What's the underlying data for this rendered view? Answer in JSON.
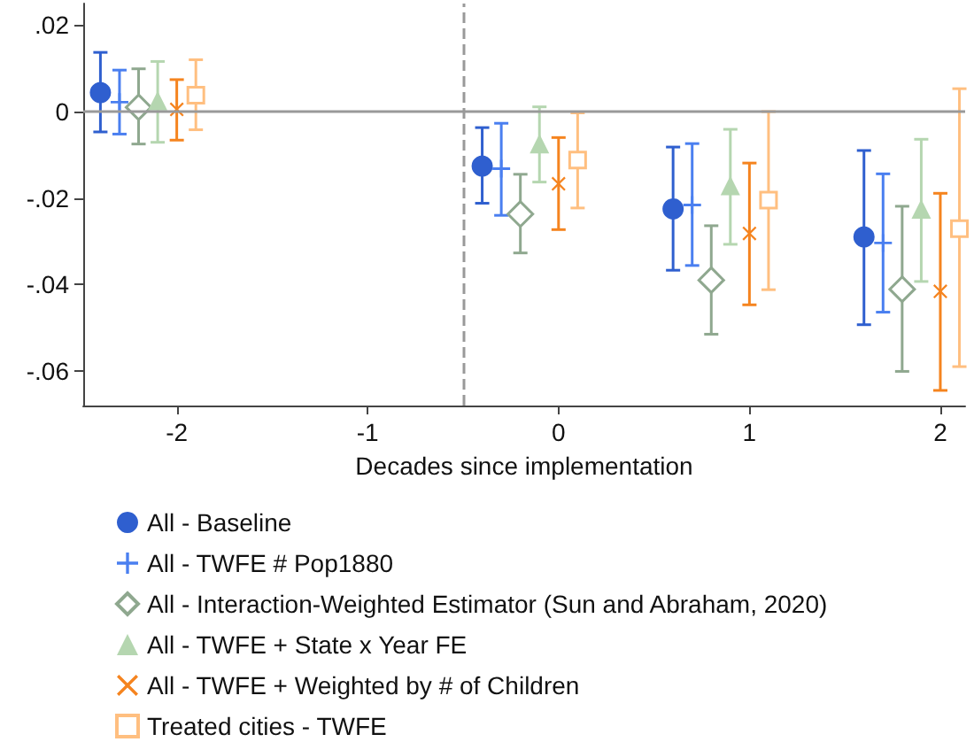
{
  "chart_data": {
    "type": "scatter",
    "xlabel": "Decades since implementation",
    "xlim": [
      -2.49,
      2.13
    ],
    "ylim": [
      -0.068,
      0.025
    ],
    "xticks": [
      -2,
      -1,
      0,
      1,
      2
    ],
    "yticks": [
      {
        "value": 0.02,
        "label": ".02"
      },
      {
        "value": 0,
        "label": "0"
      },
      {
        "value": -0.02,
        "label": "-.02"
      },
      {
        "value": -0.04,
        "label": "-.04"
      },
      {
        "value": -0.06,
        "label": "-.06"
      }
    ],
    "grid": false,
    "legend": "bottom",
    "ref_lines": [
      {
        "axis": "y",
        "value": 0,
        "label": null,
        "color": "#999999",
        "line_style": "solid"
      },
      {
        "axis": "x",
        "value": -0.5,
        "label": null,
        "color": "#999999",
        "line_style": "dashed"
      }
    ],
    "series": [
      {
        "name": "All - Baseline",
        "color": "#2f5fcf",
        "marker": "circle",
        "x": [
          -2.4,
          -0.4,
          0.6,
          1.6
        ],
        "values": [
          0.0044,
          -0.0126,
          -0.0225,
          -0.029
        ],
        "errors": [
          [
            -0.0047,
            0.0137
          ],
          [
            -0.0212,
            -0.0037
          ],
          [
            -0.0367,
            -0.0082
          ],
          [
            -0.0493,
            -0.009
          ]
        ]
      },
      {
        "name": "All - TWFE # Pop1880",
        "color": "#4a7ff0",
        "marker": "plus",
        "x": [
          -2.3,
          -0.3,
          0.7,
          1.7
        ],
        "values": [
          0.0022,
          -0.0132,
          -0.0216,
          -0.0304
        ],
        "errors": [
          [
            -0.0052,
            0.0096
          ],
          [
            -0.024,
            -0.0027
          ],
          [
            -0.0356,
            -0.0074
          ],
          [
            -0.0464,
            -0.0144
          ]
        ]
      },
      {
        "name": "All - Interaction-Weighted Estimator (Sun and Abraham, 2020)",
        "color": "#8fa88f",
        "marker": "diamond",
        "x": [
          -2.2,
          -0.2,
          0.8,
          1.8
        ],
        "values": [
          0.001,
          -0.0237,
          -0.039,
          -0.0411
        ],
        "errors": [
          [
            -0.0075,
            0.0099
          ],
          [
            -0.0327,
            -0.0145
          ],
          [
            -0.0515,
            -0.0264
          ],
          [
            -0.0601,
            -0.0219
          ]
        ]
      },
      {
        "name": "All - TWFE + State x Year FE",
        "color": "#b5d6b0",
        "marker": "triangle",
        "x": [
          -2.1,
          -0.1,
          0.9,
          1.9
        ],
        "values": [
          0.0025,
          -0.0074,
          -0.0171,
          -0.0225
        ],
        "errors": [
          [
            -0.0071,
            0.0116
          ],
          [
            -0.0163,
            0.0011
          ],
          [
            -0.0307,
            -0.0041
          ],
          [
            -0.0393,
            -0.0064
          ]
        ]
      },
      {
        "name": "All - TWFE + Weighted by # of Children",
        "color": "#f5841f",
        "marker": "cross",
        "x": [
          -2.0,
          0.0,
          1.0,
          2.0
        ],
        "values": [
          0.0005,
          -0.0167,
          -0.0282,
          -0.0416
        ],
        "errors": [
          [
            -0.0066,
            0.0074
          ],
          [
            -0.0273,
            -0.006
          ],
          [
            -0.0447,
            -0.0119
          ],
          [
            -0.0645,
            -0.0189
          ]
        ]
      },
      {
        "name": "Treated cities - TWFE",
        "color": "#ffbf80",
        "marker": "square",
        "x": [
          -1.9,
          0.1,
          1.1,
          2.1
        ],
        "values": [
          0.0038,
          -0.0112,
          -0.0205,
          -0.0271
        ],
        "errors": [
          [
            -0.0042,
            0.012
          ],
          [
            -0.0223,
            -0.0003
          ],
          [
            -0.0412,
            0.0
          ],
          [
            -0.059,
            0.0053
          ]
        ]
      }
    ]
  }
}
